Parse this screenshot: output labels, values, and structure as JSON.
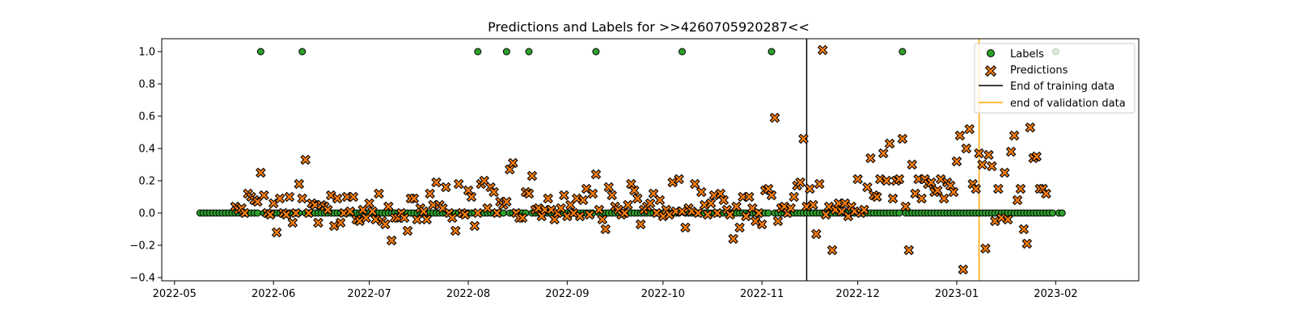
{
  "chart_data": {
    "type": "scatter",
    "title": "Predictions and Labels for >>4260705920287<<",
    "xlabel": "",
    "ylabel": "",
    "x_type": "date",
    "xlim": [
      "2022-04-27",
      "2023-02-27"
    ],
    "ylim": [
      -0.42,
      1.08
    ],
    "x_ticks": [
      "2022-05-01",
      "2022-06-01",
      "2022-07-01",
      "2022-08-01",
      "2022-09-01",
      "2022-10-01",
      "2022-11-01",
      "2022-12-01",
      "2023-01-01",
      "2023-02-01"
    ],
    "x_tick_labels": [
      "2022-05",
      "2022-06",
      "2022-07",
      "2022-08",
      "2022-09",
      "2022-10",
      "2022-11",
      "2022-12",
      "2023-01",
      "2023-02"
    ],
    "y_ticks": [
      -0.4,
      -0.2,
      0.0,
      0.2,
      0.4,
      0.6,
      0.8,
      1.0
    ],
    "y_tick_labels": [
      "−0.4",
      "−0.2",
      "0.0",
      "0.2",
      "0.4",
      "0.6",
      "0.8",
      "1.0"
    ],
    "grid": false,
    "legend_position": "top-right",
    "colors": {
      "labels": "#2ca02c",
      "predictions": "#ff7f0e",
      "training_line": "#000000",
      "validation_line": "#ffa500",
      "marker_edge": "#000000"
    },
    "vertical_lines": [
      {
        "name": "End of training data",
        "x": "2022-11-15",
        "color": "#000000"
      },
      {
        "name": "end of validation data",
        "x": "2023-01-08",
        "color": "#ffa500"
      }
    ],
    "label_ones": [
      "2022-05-28",
      "2022-06-10",
      "2022-08-04",
      "2022-08-13",
      "2022-08-20",
      "2022-09-10",
      "2022-10-07",
      "2022-11-04",
      "2022-12-15",
      "2023-02-01"
    ],
    "label_zero_range": [
      "2022-05-09",
      "2023-02-03"
    ],
    "series": [
      {
        "name": "Labels",
        "marker": "circle",
        "color": "#2ca02c"
      },
      {
        "name": "Predictions",
        "marker": "x",
        "color": "#ff7f0e",
        "points": [
          [
            "2022-05-20",
            0.04
          ],
          [
            "2022-05-21",
            0.02
          ],
          [
            "2022-05-22",
            0.03
          ],
          [
            "2022-05-23",
            0.0
          ],
          [
            "2022-05-24",
            0.12
          ],
          [
            "2022-05-25",
            0.1
          ],
          [
            "2022-05-26",
            0.08
          ],
          [
            "2022-05-27",
            0.07
          ],
          [
            "2022-05-28",
            0.25
          ],
          [
            "2022-05-29",
            0.11
          ],
          [
            "2022-05-30",
            0.0
          ],
          [
            "2022-05-31",
            -0.01
          ],
          [
            "2022-06-01",
            0.06
          ],
          [
            "2022-06-02",
            -0.12
          ],
          [
            "2022-06-03",
            0.09
          ],
          [
            "2022-06-04",
            0.0
          ],
          [
            "2022-06-05",
            -0.01
          ],
          [
            "2022-06-06",
            0.1
          ],
          [
            "2022-06-07",
            -0.06
          ],
          [
            "2022-06-08",
            0.0
          ],
          [
            "2022-06-09",
            0.18
          ],
          [
            "2022-06-10",
            0.09
          ],
          [
            "2022-06-11",
            0.33
          ],
          [
            "2022-06-12",
            0.0
          ],
          [
            "2022-06-13",
            0.06
          ],
          [
            "2022-06-14",
            0.05
          ],
          [
            "2022-06-15",
            -0.06
          ],
          [
            "2022-06-16",
            0.05
          ],
          [
            "2022-06-17",
            0.04
          ],
          [
            "2022-06-18",
            0.02
          ],
          [
            "2022-06-19",
            0.11
          ],
          [
            "2022-06-20",
            -0.08
          ],
          [
            "2022-06-21",
            0.09
          ],
          [
            "2022-06-22",
            -0.06
          ],
          [
            "2022-06-23",
            0.0
          ],
          [
            "2022-06-24",
            0.1
          ],
          [
            "2022-06-25",
            0.01
          ],
          [
            "2022-06-26",
            0.1
          ],
          [
            "2022-06-27",
            -0.04
          ],
          [
            "2022-06-28",
            -0.05
          ],
          [
            "2022-06-29",
            0.02
          ],
          [
            "2022-06-30",
            -0.03
          ],
          [
            "2022-07-01",
            0.06
          ],
          [
            "2022-07-02",
            0.01
          ],
          [
            "2022-07-03",
            -0.04
          ],
          [
            "2022-07-04",
            0.12
          ],
          [
            "2022-07-05",
            -0.05
          ],
          [
            "2022-07-06",
            -0.07
          ],
          [
            "2022-07-07",
            0.04
          ],
          [
            "2022-07-08",
            -0.17
          ],
          [
            "2022-07-09",
            -0.03
          ],
          [
            "2022-07-10",
            -0.03
          ],
          [
            "2022-07-11",
            0.0
          ],
          [
            "2022-07-12",
            -0.03
          ],
          [
            "2022-07-13",
            -0.11
          ],
          [
            "2022-07-14",
            0.09
          ],
          [
            "2022-07-15",
            0.09
          ],
          [
            "2022-07-16",
            -0.04
          ],
          [
            "2022-07-17",
            0.03
          ],
          [
            "2022-07-18",
            0.01
          ],
          [
            "2022-07-19",
            -0.04
          ],
          [
            "2022-07-20",
            0.12
          ],
          [
            "2022-07-21",
            0.05
          ],
          [
            "2022-07-22",
            0.19
          ],
          [
            "2022-07-23",
            0.05
          ],
          [
            "2022-07-24",
            0.03
          ],
          [
            "2022-07-25",
            0.16
          ],
          [
            "2022-07-26",
            0.0
          ],
          [
            "2022-07-27",
            -0.03
          ],
          [
            "2022-07-28",
            -0.11
          ],
          [
            "2022-07-29",
            0.18
          ],
          [
            "2022-07-30",
            0.0
          ],
          [
            "2022-07-31",
            -0.01
          ],
          [
            "2022-08-01",
            0.14
          ],
          [
            "2022-08-02",
            0.1
          ],
          [
            "2022-08-03",
            -0.08
          ],
          [
            "2022-08-04",
            0.0
          ],
          [
            "2022-08-05",
            0.18
          ],
          [
            "2022-08-06",
            0.2
          ],
          [
            "2022-08-07",
            0.03
          ],
          [
            "2022-08-08",
            0.16
          ],
          [
            "2022-08-09",
            0.13
          ],
          [
            "2022-08-10",
            0.0
          ],
          [
            "2022-08-11",
            0.07
          ],
          [
            "2022-08-12",
            0.05
          ],
          [
            "2022-08-13",
            0.07
          ],
          [
            "2022-08-14",
            0.27
          ],
          [
            "2022-08-15",
            0.31
          ],
          [
            "2022-08-16",
            0.0
          ],
          [
            "2022-08-17",
            -0.03
          ],
          [
            "2022-08-18",
            -0.03
          ],
          [
            "2022-08-19",
            0.13
          ],
          [
            "2022-08-20",
            0.12
          ],
          [
            "2022-08-21",
            0.23
          ],
          [
            "2022-08-22",
            0.02
          ],
          [
            "2022-08-23",
            0.03
          ],
          [
            "2022-08-24",
            -0.02
          ],
          [
            "2022-08-25",
            0.02
          ],
          [
            "2022-08-26",
            0.09
          ],
          [
            "2022-08-27",
            0.02
          ],
          [
            "2022-08-28",
            -0.04
          ],
          [
            "2022-08-29",
            0.0
          ],
          [
            "2022-08-30",
            0.03
          ],
          [
            "2022-08-31",
            0.11
          ],
          [
            "2022-09-01",
            -0.02
          ],
          [
            "2022-09-02",
            0.05
          ],
          [
            "2022-09-03",
            0.0
          ],
          [
            "2022-09-04",
            0.09
          ],
          [
            "2022-09-05",
            -0.02
          ],
          [
            "2022-09-06",
            0.08
          ],
          [
            "2022-09-07",
            0.15
          ],
          [
            "2022-09-08",
            -0.01
          ],
          [
            "2022-09-09",
            0.12
          ],
          [
            "2022-09-10",
            0.24
          ],
          [
            "2022-09-11",
            0.02
          ],
          [
            "2022-09-12",
            -0.04
          ],
          [
            "2022-09-13",
            -0.1
          ],
          [
            "2022-09-14",
            0.16
          ],
          [
            "2022-09-15",
            0.11
          ],
          [
            "2022-09-16",
            0.04
          ],
          [
            "2022-09-17",
            0.02
          ],
          [
            "2022-09-18",
            -0.01
          ],
          [
            "2022-09-19",
            0.0
          ],
          [
            "2022-09-20",
            0.05
          ],
          [
            "2022-09-21",
            0.18
          ],
          [
            "2022-09-22",
            0.14
          ],
          [
            "2022-09-23",
            0.09
          ],
          [
            "2022-09-24",
            -0.07
          ],
          [
            "2022-09-25",
            0.02
          ],
          [
            "2022-09-26",
            0.04
          ],
          [
            "2022-09-27",
            0.06
          ],
          [
            "2022-09-28",
            0.12
          ],
          [
            "2022-09-29",
            0.0
          ],
          [
            "2022-09-30",
            0.08
          ],
          [
            "2022-10-01",
            -0.02
          ],
          [
            "2022-10-02",
            0.02
          ],
          [
            "2022-10-03",
            -0.01
          ],
          [
            "2022-10-04",
            0.19
          ],
          [
            "2022-10-05",
            0.01
          ],
          [
            "2022-10-06",
            0.21
          ],
          [
            "2022-10-07",
            0.01
          ],
          [
            "2022-10-08",
            -0.09
          ],
          [
            "2022-10-09",
            0.03
          ],
          [
            "2022-10-10",
            0.01
          ],
          [
            "2022-10-11",
            0.18
          ],
          [
            "2022-10-12",
            0.0
          ],
          [
            "2022-10-13",
            0.13
          ],
          [
            "2022-10-14",
            0.05
          ],
          [
            "2022-10-15",
            -0.01
          ],
          [
            "2022-10-16",
            0.06
          ],
          [
            "2022-10-17",
            0.11
          ],
          [
            "2022-10-18",
            0.0
          ],
          [
            "2022-10-19",
            0.12
          ],
          [
            "2022-10-20",
            0.08
          ],
          [
            "2022-10-21",
            0.02
          ],
          [
            "2022-10-22",
            -0.01
          ],
          [
            "2022-10-23",
            -0.16
          ],
          [
            "2022-10-24",
            0.04
          ],
          [
            "2022-10-25",
            -0.09
          ],
          [
            "2022-10-26",
            0.1
          ],
          [
            "2022-10-27",
            -0.02
          ],
          [
            "2022-10-28",
            0.1
          ],
          [
            "2022-10-29",
            0.03
          ],
          [
            "2022-10-30",
            -0.05
          ],
          [
            "2022-10-31",
            0.0
          ],
          [
            "2022-11-01",
            -0.07
          ],
          [
            "2022-11-02",
            0.14
          ],
          [
            "2022-11-03",
            0.15
          ],
          [
            "2022-11-04",
            0.11
          ],
          [
            "2022-11-05",
            0.59
          ],
          [
            "2022-11-06",
            -0.05
          ],
          [
            "2022-11-07",
            0.03
          ],
          [
            "2022-11-08",
            0.04
          ],
          [
            "2022-11-09",
            0.0
          ],
          [
            "2022-11-10",
            0.03
          ],
          [
            "2022-11-11",
            0.1
          ],
          [
            "2022-11-12",
            0.17
          ],
          [
            "2022-11-13",
            0.19
          ],
          [
            "2022-11-14",
            0.46
          ],
          [
            "2022-11-15",
            0.04
          ],
          [
            "2022-11-16",
            0.15
          ],
          [
            "2022-11-17",
            0.05
          ],
          [
            "2022-11-18",
            -0.13
          ],
          [
            "2022-11-19",
            0.18
          ],
          [
            "2022-11-20",
            1.01
          ],
          [
            "2022-11-21",
            -0.01
          ],
          [
            "2022-11-22",
            0.04
          ],
          [
            "2022-11-23",
            -0.23
          ],
          [
            "2022-11-24",
            0.02
          ],
          [
            "2022-11-25",
            0.06
          ],
          [
            "2022-11-26",
            0.01
          ],
          [
            "2022-11-27",
            0.06
          ],
          [
            "2022-11-28",
            -0.02
          ],
          [
            "2022-11-29",
            0.04
          ],
          [
            "2022-11-30",
            0.01
          ],
          [
            "2022-12-01",
            0.21
          ],
          [
            "2022-12-02",
            0.0
          ],
          [
            "2022-12-03",
            0.02
          ],
          [
            "2022-12-04",
            0.16
          ],
          [
            "2022-12-05",
            0.34
          ],
          [
            "2022-12-06",
            0.11
          ],
          [
            "2022-12-07",
            0.1
          ],
          [
            "2022-12-08",
            0.21
          ],
          [
            "2022-12-09",
            0.37
          ],
          [
            "2022-12-10",
            0.2
          ],
          [
            "2022-12-11",
            0.43
          ],
          [
            "2022-12-12",
            0.09
          ],
          [
            "2022-12-13",
            0.2
          ],
          [
            "2022-12-14",
            0.21
          ],
          [
            "2022-12-15",
            0.46
          ],
          [
            "2022-12-16",
            0.04
          ],
          [
            "2022-12-17",
            -0.23
          ],
          [
            "2022-12-18",
            0.3
          ],
          [
            "2022-12-19",
            0.12
          ],
          [
            "2022-12-20",
            0.21
          ],
          [
            "2022-12-21",
            0.09
          ],
          [
            "2022-12-22",
            0.21
          ],
          [
            "2022-12-23",
            0.18
          ],
          [
            "2022-12-24",
            0.19
          ],
          [
            "2022-12-25",
            0.13
          ],
          [
            "2022-12-26",
            0.14
          ],
          [
            "2022-12-27",
            0.21
          ],
          [
            "2022-12-28",
            0.09
          ],
          [
            "2022-12-29",
            0.19
          ],
          [
            "2022-12-30",
            0.17
          ],
          [
            "2022-12-31",
            0.13
          ],
          [
            "2023-01-01",
            0.32
          ],
          [
            "2023-01-02",
            0.48
          ],
          [
            "2023-01-03",
            -0.35
          ],
          [
            "2023-01-04",
            0.4
          ],
          [
            "2023-01-05",
            0.52
          ],
          [
            "2023-01-06",
            0.18
          ],
          [
            "2023-01-07",
            0.15
          ],
          [
            "2023-01-08",
            0.37
          ],
          [
            "2023-01-09",
            0.3
          ],
          [
            "2023-01-10",
            -0.22
          ],
          [
            "2023-01-11",
            0.36
          ],
          [
            "2023-01-12",
            0.29
          ],
          [
            "2023-01-13",
            -0.05
          ],
          [
            "2023-01-14",
            0.15
          ],
          [
            "2023-01-15",
            -0.03
          ],
          [
            "2023-01-16",
            0.25
          ],
          [
            "2023-01-17",
            -0.04
          ],
          [
            "2023-01-18",
            0.38
          ],
          [
            "2023-01-19",
            0.48
          ],
          [
            "2023-01-20",
            0.08
          ],
          [
            "2023-01-21",
            0.15
          ],
          [
            "2023-01-22",
            -0.1
          ],
          [
            "2023-01-23",
            -0.19
          ],
          [
            "2023-01-24",
            0.53
          ],
          [
            "2023-01-25",
            0.34
          ],
          [
            "2023-01-26",
            0.35
          ],
          [
            "2023-01-27",
            0.15
          ],
          [
            "2023-01-28",
            0.15
          ],
          [
            "2023-01-29",
            0.12
          ]
        ]
      }
    ]
  }
}
